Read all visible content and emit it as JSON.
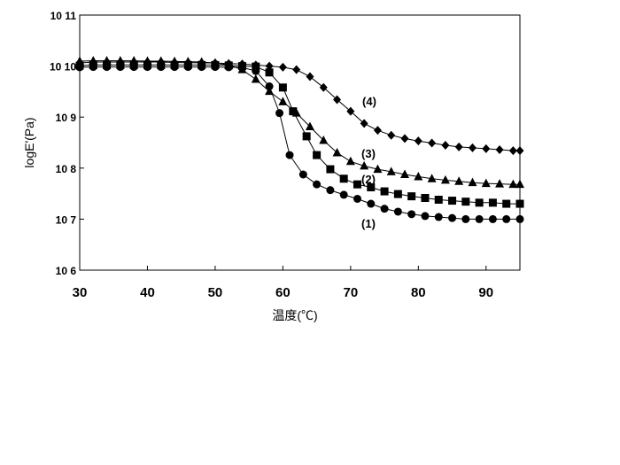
{
  "chart_data": {
    "type": "scatter",
    "title": "",
    "xlabel": "温度(℃)",
    "ylabel": "logE'(Pa)",
    "xlim": [
      30,
      95
    ],
    "ylim": [
      1000000,
      100000000000
    ],
    "yscale": "log",
    "grid": false,
    "x_ticks": [
      "30",
      "40",
      "50",
      "60",
      "70",
      "80",
      "90"
    ],
    "y_ticks": [
      "10 6",
      "10 7",
      "10 8",
      "10 9",
      "10 10",
      "10 11"
    ],
    "series": [
      {
        "name": "(1)",
        "marker": "circle",
        "points": [
          [
            30,
            9500000000.0
          ],
          [
            32,
            9600000000.0
          ],
          [
            34,
            9600000000.0
          ],
          [
            36,
            9600000000.0
          ],
          [
            38,
            9600000000.0
          ],
          [
            40,
            9600000000.0
          ],
          [
            42,
            9600000000.0
          ],
          [
            44,
            9600000000.0
          ],
          [
            46,
            9600000000.0
          ],
          [
            48,
            9600000000.0
          ],
          [
            50,
            9600000000.0
          ],
          [
            52,
            9500000000.0
          ],
          [
            54,
            9400000000.0
          ],
          [
            56,
            8000000000.0
          ],
          [
            58,
            4000000000.0
          ],
          [
            59.5,
            1200000000.0
          ],
          [
            61,
            180000000.0
          ],
          [
            63,
            75000000.0
          ],
          [
            65,
            48000000.0
          ],
          [
            67,
            37000000.0
          ],
          [
            69,
            30000000.0
          ],
          [
            71,
            25000000.0
          ],
          [
            73,
            20000000.0
          ],
          [
            75,
            16000000.0
          ],
          [
            77,
            14000000.0
          ],
          [
            79,
            12500000.0
          ],
          [
            81,
            11500000.0
          ],
          [
            83,
            11000000.0
          ],
          [
            85,
            10500000.0
          ],
          [
            87,
            10000000.0
          ],
          [
            89,
            10000000.0
          ],
          [
            91,
            10000000.0
          ],
          [
            93,
            10000000.0
          ],
          [
            95,
            10000000.0
          ]
        ]
      },
      {
        "name": "(2)",
        "marker": "square",
        "points": [
          [
            30,
            10200000000.0
          ],
          [
            32,
            10500000000.0
          ],
          [
            34,
            10500000000.0
          ],
          [
            36,
            10500000000.0
          ],
          [
            38,
            10500000000.0
          ],
          [
            40,
            10500000000.0
          ],
          [
            42,
            10500000000.0
          ],
          [
            44,
            10500000000.0
          ],
          [
            46,
            10500000000.0
          ],
          [
            48,
            10500000000.0
          ],
          [
            50,
            10500000000.0
          ],
          [
            52,
            10300000000.0
          ],
          [
            54,
            10000000000.0
          ],
          [
            56,
            9800000000.0
          ],
          [
            58,
            7500000000.0
          ],
          [
            60,
            3800000000.0
          ],
          [
            61.5,
            1300000000.0
          ],
          [
            63.5,
            420000000.0
          ],
          [
            65,
            180000000.0
          ],
          [
            67,
            95000000.0
          ],
          [
            69,
            62000000.0
          ],
          [
            71,
            48000000.0
          ],
          [
            73,
            42000000.0
          ],
          [
            75,
            35000000.0
          ],
          [
            77,
            31000000.0
          ],
          [
            79,
            28000000.0
          ],
          [
            81,
            26000000.0
          ],
          [
            83,
            24000000.0
          ],
          [
            85,
            23000000.0
          ],
          [
            87,
            22000000.0
          ],
          [
            89,
            21000000.0
          ],
          [
            91,
            21000000.0
          ],
          [
            93,
            20000000.0
          ],
          [
            95,
            20000000.0
          ]
        ]
      },
      {
        "name": "(3)",
        "marker": "triangle",
        "points": [
          [
            30,
            12500000000.0
          ],
          [
            32,
            12700000000.0
          ],
          [
            34,
            12700000000.0
          ],
          [
            36,
            12700000000.0
          ],
          [
            38,
            12700000000.0
          ],
          [
            40,
            12500000000.0
          ],
          [
            42,
            12500000000.0
          ],
          [
            44,
            12300000000.0
          ],
          [
            46,
            12200000000.0
          ],
          [
            48,
            12000000000.0
          ],
          [
            50,
            11500000000.0
          ],
          [
            52,
            10500000000.0
          ],
          [
            54,
            8500000000.0
          ],
          [
            56,
            5500000000.0
          ],
          [
            58,
            3200000000.0
          ],
          [
            60,
            2000000000.0
          ],
          [
            62,
            1200000000.0
          ],
          [
            64,
            650000000.0
          ],
          [
            66,
            350000000.0
          ],
          [
            68,
            200000000.0
          ],
          [
            70,
            135000000.0
          ],
          [
            72,
            110000000.0
          ],
          [
            74,
            95000000.0
          ],
          [
            76,
            85000000.0
          ],
          [
            78,
            75000000.0
          ],
          [
            80,
            68000000.0
          ],
          [
            82,
            62000000.0
          ],
          [
            84,
            58000000.0
          ],
          [
            86,
            55000000.0
          ],
          [
            88,
            52000000.0
          ],
          [
            90,
            50000000.0
          ],
          [
            92,
            49000000.0
          ],
          [
            94,
            48000000.0
          ],
          [
            95,
            48000000.0
          ]
        ]
      },
      {
        "name": "(4)",
        "marker": "diamond",
        "points": [
          [
            30,
            11500000000.0
          ],
          [
            32,
            12000000000.0
          ],
          [
            34,
            12000000000.0
          ],
          [
            36,
            12000000000.0
          ],
          [
            38,
            12000000000.0
          ],
          [
            40,
            12000000000.0
          ],
          [
            42,
            12000000000.0
          ],
          [
            44,
            11800000000.0
          ],
          [
            46,
            11700000000.0
          ],
          [
            48,
            11600000000.0
          ],
          [
            50,
            11500000000.0
          ],
          [
            52,
            11200000000.0
          ],
          [
            54,
            11000000000.0
          ],
          [
            56,
            10500000000.0
          ],
          [
            58,
            10000000000.0
          ],
          [
            60,
            9500000000.0
          ],
          [
            62,
            8500000000.0
          ],
          [
            64,
            6200000000.0
          ],
          [
            66,
            3800000000.0
          ],
          [
            68,
            2200000000.0
          ],
          [
            70,
            1300000000.0
          ],
          [
            72,
            750000000.0
          ],
          [
            74,
            550000000.0
          ],
          [
            76,
            440000000.0
          ],
          [
            78,
            380000000.0
          ],
          [
            80,
            340000000.0
          ],
          [
            82,
            310000000.0
          ],
          [
            84,
            280000000.0
          ],
          [
            86,
            260000000.0
          ],
          [
            88,
            250000000.0
          ],
          [
            90,
            240000000.0
          ],
          [
            92,
            230000000.0
          ],
          [
            94,
            220000000.0
          ],
          [
            95,
            220000000.0
          ]
        ]
      }
    ],
    "annotations": [
      "(1)",
      "(2)",
      "(3)",
      "(4)"
    ]
  }
}
